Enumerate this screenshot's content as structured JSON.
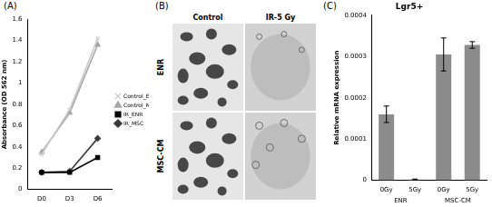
{
  "chart_data": [
    {
      "type": "line",
      "panel": "(A)",
      "y_label": "Absorbance (OD 562 nm)",
      "categories": [
        "D0",
        "D3",
        "D6"
      ],
      "series": [
        {
          "name": "Control_ENR",
          "color": "#c8c8c8",
          "marker": "x",
          "values": [
            0.33,
            0.75,
            1.42
          ]
        },
        {
          "name": "Control_MSC",
          "color": "#a6a6a6",
          "marker": "triangle",
          "values": [
            0.35,
            0.72,
            1.36
          ]
        },
        {
          "name": "IR_ENR",
          "color": "#000000",
          "marker": "square",
          "values": [
            0.16,
            0.16,
            0.3
          ]
        },
        {
          "name": "IR_MSC",
          "color": "#3a3a3a",
          "marker": "diamond",
          "values": [
            0.16,
            0.17,
            0.48
          ]
        }
      ],
      "ylim": [
        0,
        1.6
      ],
      "yticks": [
        0,
        0.2,
        0.4,
        0.6,
        0.8,
        1,
        1.2,
        1.4,
        1.6
      ],
      "grid": false,
      "legend": "right"
    },
    {
      "type": "bar",
      "panel": "(C)",
      "title": "Lgr5+",
      "y_label": "Relative mRNA expression",
      "categories": [
        "0Gy",
        "5Gy",
        "0Gy",
        "5Gy"
      ],
      "group_labels": [
        "ENR",
        "MSC-CM"
      ],
      "values": [
        0.00016,
        2e-06,
        0.000305,
        0.000328
      ],
      "errors": [
        2e-05,
        1e-06,
        4e-05,
        8e-06
      ],
      "color": "#8c8c8c",
      "ylim": [
        0,
        0.0004
      ],
      "yticks": [
        0,
        0.0001,
        0.0002,
        0.0003,
        0.0004
      ],
      "grid": false
    }
  ],
  "panel_b": {
    "panel": "(B)",
    "columns": [
      "Control",
      "IR-5 Gy"
    ],
    "rows": [
      "ENR",
      "MSC-CM"
    ]
  }
}
